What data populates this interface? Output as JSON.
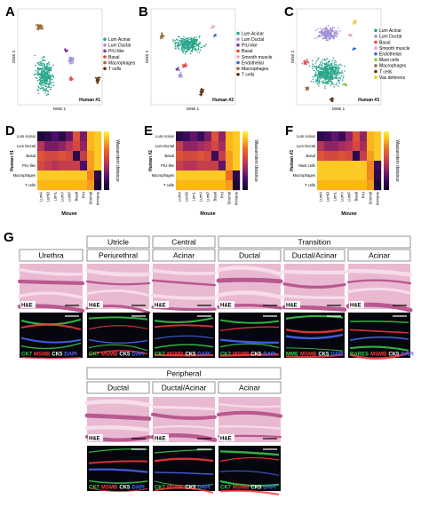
{
  "panels": [
    {
      "label": "A",
      "title": "Human #1",
      "xlabel": "tSNE 1",
      "ylabel": "tSNE 2",
      "legend": [
        {
          "name": "Lum Acinar",
          "color": "#2aa58a"
        },
        {
          "name": "Lum Ductal",
          "color": "#a38fd6"
        },
        {
          "name": "PrU-like",
          "color": "#7a3aa0"
        },
        {
          "name": "Basal",
          "color": "#e3473c"
        },
        {
          "name": "Macrophages",
          "color": "#9b6a3a"
        },
        {
          "name": "T cells",
          "color": "#5a3216"
        }
      ]
    },
    {
      "label": "B",
      "title": "Human #2",
      "xlabel": "tSNE 1",
      "ylabel": "tSNE 2",
      "legend": [
        {
          "name": "Lum Acinar",
          "color": "#2aa58a"
        },
        {
          "name": "Lum Ductal",
          "color": "#a38fd6"
        },
        {
          "name": "PrU-like",
          "color": "#7a3aa0"
        },
        {
          "name": "Basal",
          "color": "#e3473c"
        },
        {
          "name": "Smooth muscle",
          "color": "#f0a0b8"
        },
        {
          "name": "Endothelial",
          "color": "#3a6fc4"
        },
        {
          "name": "Macrophages",
          "color": "#9b6a3a"
        },
        {
          "name": "T cells",
          "color": "#5a3216"
        }
      ]
    },
    {
      "label": "C",
      "title": "Human #3",
      "xlabel": "tSNE 1",
      "ylabel": "tSNE 2",
      "legend": [
        {
          "name": "Lum Acinar",
          "color": "#2aa58a"
        },
        {
          "name": "Lum Ductal",
          "color": "#a38fd6"
        },
        {
          "name": "Basal",
          "color": "#e3473c"
        },
        {
          "name": "Smooth muscle",
          "color": "#f0a0b8"
        },
        {
          "name": "Endothelial",
          "color": "#3a6fc4"
        },
        {
          "name": "Mast cells",
          "color": "#8cc63f"
        },
        {
          "name": "Macrophages",
          "color": "#9b6a3a"
        },
        {
          "name": "T cells",
          "color": "#5a3216"
        },
        {
          "name": "Vas deferens",
          "color": "#f2c318"
        }
      ]
    }
  ],
  "heatmaps": [
    {
      "label": "D",
      "ylabel": "Human #1",
      "xlabel": "Mouse",
      "colorbar_label": "Wasserstein distance",
      "rows": [
        "Lum Acinar",
        "Lum Ductal",
        "Basal",
        "PrU-like",
        "Macrophages",
        "T cells"
      ],
      "columns": [
        "LumA",
        "LumD",
        "LumL",
        "LumV",
        "LumP",
        "Basal",
        "PrU",
        "Stromal",
        "Immune"
      ],
      "values": [
        [
          0.05,
          0.1,
          0.2,
          0.1,
          0.25,
          0.6,
          0.3,
          0.85,
          0.9
        ],
        [
          0.45,
          0.3,
          0.3,
          0.35,
          0.45,
          0.55,
          0.35,
          0.85,
          0.9
        ],
        [
          0.6,
          0.55,
          0.55,
          0.6,
          0.55,
          0.1,
          0.5,
          0.8,
          0.9
        ],
        [
          0.55,
          0.5,
          0.45,
          0.5,
          0.5,
          0.5,
          0.2,
          0.8,
          0.9
        ],
        [
          0.9,
          0.9,
          0.9,
          0.9,
          0.9,
          0.9,
          0.9,
          0.75,
          0.1
        ],
        [
          0.85,
          0.85,
          0.85,
          0.85,
          0.85,
          0.85,
          0.85,
          0.8,
          0.05
        ]
      ]
    },
    {
      "label": "E",
      "ylabel": "Human #2",
      "xlabel": "Mouse",
      "colorbar_label": "Wasserstein distance",
      "rows": [
        "Lum Acinar",
        "Lum Ductal",
        "Basal",
        "PrU-like",
        "Macrophages",
        "T cells"
      ],
      "columns": [
        "LumA",
        "LumD",
        "LumL",
        "LumV",
        "LumP",
        "Basal",
        "PrU",
        "Stromal",
        "Immune"
      ],
      "values": [
        [
          0.1,
          0.15,
          0.25,
          0.15,
          0.3,
          0.6,
          0.35,
          0.85,
          0.9
        ],
        [
          0.5,
          0.35,
          0.35,
          0.4,
          0.45,
          0.55,
          0.4,
          0.85,
          0.9
        ],
        [
          0.6,
          0.55,
          0.55,
          0.6,
          0.55,
          0.15,
          0.5,
          0.8,
          0.9
        ],
        [
          0.5,
          0.45,
          0.45,
          0.5,
          0.5,
          0.5,
          0.25,
          0.8,
          0.9
        ],
        [
          0.9,
          0.9,
          0.9,
          0.9,
          0.9,
          0.9,
          0.9,
          0.7,
          0.1
        ],
        [
          0.85,
          0.85,
          0.85,
          0.85,
          0.85,
          0.85,
          0.85,
          0.8,
          0.05
        ]
      ]
    },
    {
      "label": "F",
      "ylabel": "Human #3",
      "xlabel": "Mouse",
      "colorbar_label": "Wasserstein distance",
      "rows": [
        "Lum Acinar",
        "Lum Ductal",
        "Basal",
        "Mast cells",
        "Macrophages",
        "T cells"
      ],
      "columns": [
        "LumA",
        "LumD",
        "LumL",
        "LumV",
        "LumP",
        "Basal",
        "PrU",
        "Stromal",
        "Immune"
      ],
      "values": [
        [
          0.1,
          0.15,
          0.25,
          0.15,
          0.35,
          0.6,
          0.35,
          0.85,
          0.9
        ],
        [
          0.45,
          0.35,
          0.35,
          0.4,
          0.45,
          0.55,
          0.4,
          0.85,
          0.9
        ],
        [
          0.6,
          0.55,
          0.55,
          0.6,
          0.55,
          0.1,
          0.5,
          0.8,
          0.9
        ],
        [
          0.9,
          0.9,
          0.9,
          0.9,
          0.9,
          0.9,
          0.9,
          0.75,
          0.15
        ],
        [
          0.9,
          0.9,
          0.9,
          0.9,
          0.9,
          0.9,
          0.9,
          0.75,
          0.1
        ],
        [
          0.85,
          0.85,
          0.85,
          0.85,
          0.85,
          0.85,
          0.85,
          0.8,
          0.05
        ]
      ]
    }
  ],
  "histology": {
    "label": "G",
    "he_label": "H&E",
    "stain_colors": [
      "#39d04a",
      "#ff3a3a",
      "#ffffff",
      "#4a6cff"
    ],
    "groups": [
      {
        "title": "Utricle"
      },
      {
        "title": "Central"
      },
      {
        "title": "Transition"
      }
    ],
    "columns": [
      {
        "title": "Urethra",
        "stains": [
          "CK7",
          "MSMB",
          "CK5",
          "DAPI"
        ]
      },
      {
        "title": "Periurethral",
        "stains": [
          "CK7",
          "MSMB",
          "CK5",
          "DAPI"
        ]
      },
      {
        "title": "Acinar",
        "stains": [
          "CK7",
          "MSMB",
          "CK5",
          "DAPI"
        ]
      },
      {
        "title": "Ductal",
        "stains": [
          "CK7",
          "MSMB",
          "CK5",
          "DAPI"
        ]
      },
      {
        "title": "Ductal/Acinar",
        "stains": [
          "MME",
          "MSMB",
          "CK5",
          "DAPI"
        ]
      },
      {
        "title": "Acinar",
        "stains": [
          "RARES",
          "MSMB",
          "CK5",
          "DAPI"
        ]
      }
    ],
    "peripheral": {
      "title": "Peripheral",
      "columns": [
        {
          "title": "Ductal",
          "stains": [
            "CK7",
            "MSMB",
            "CK5",
            "DAPI"
          ]
        },
        {
          "title": "Ductal/Acinar",
          "stains": [
            "CK7",
            "MSMB",
            "CK5",
            "DAPI"
          ]
        },
        {
          "title": "Acinar",
          "stains": [
            "CK7",
            "MSMB",
            "CK5",
            "DAPI"
          ]
        }
      ]
    }
  }
}
